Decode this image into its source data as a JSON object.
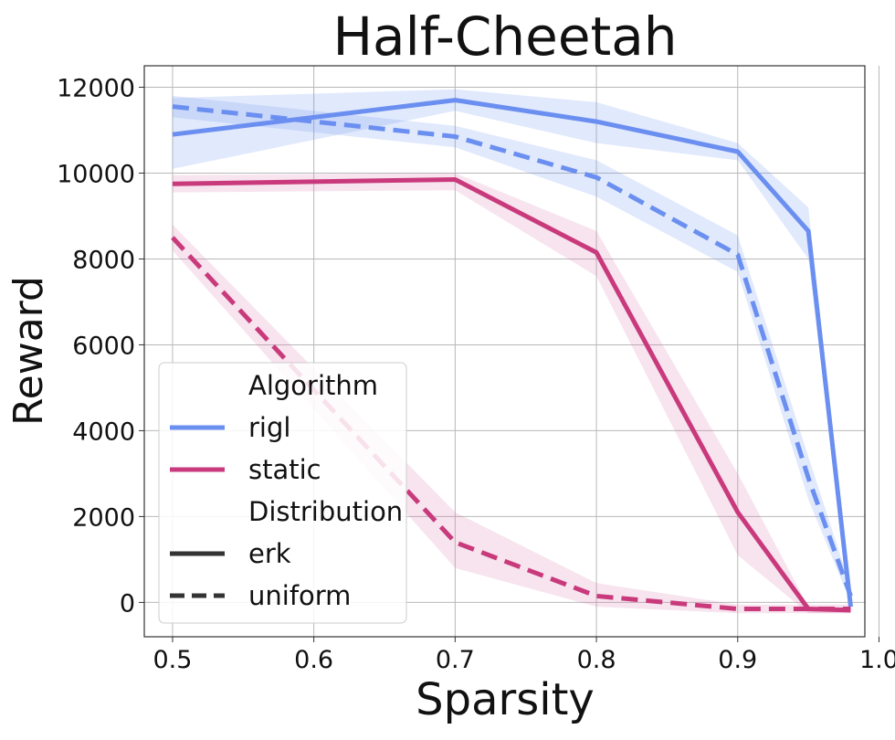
{
  "chart_data": {
    "type": "line",
    "title": "Half-Cheetah",
    "xlabel": "Sparsity",
    "ylabel": "Reward",
    "xlim": [
      0.48,
      0.99
    ],
    "ylim": [
      -800,
      12500
    ],
    "xticks": [
      0.5,
      0.6,
      0.7,
      0.8,
      0.9,
      1.0
    ],
    "xtick_labels": [
      "0.5",
      "0.6",
      "0.7",
      "0.8",
      "0.9",
      "1.0"
    ],
    "yticks": [
      0,
      2000,
      4000,
      6000,
      8000,
      10000,
      12000
    ],
    "ytick_labels": [
      "0",
      "2000",
      "4000",
      "6000",
      "8000",
      "10000",
      "12000"
    ],
    "grid": true,
    "legend": {
      "placement": "lower-left",
      "hue_title": "Algorithm",
      "style_title": "Distribution",
      "hue_entries": [
        {
          "label": "rigl",
          "color": "#6b8ff0"
        },
        {
          "label": "static",
          "color": "#c93a7c"
        }
      ],
      "style_entries": [
        {
          "label": "erk",
          "dash": "solid",
          "color": "#333333"
        },
        {
          "label": "uniform",
          "dash": "dashed",
          "color": "#333333"
        }
      ]
    },
    "series": [
      {
        "name": "rigl",
        "distribution": "erk",
        "color": "#6b8ff0",
        "band_color": "#6b8ff0",
        "dash": "solid",
        "x": [
          0.5,
          0.7,
          0.8,
          0.9,
          0.95,
          0.98
        ],
        "y": [
          10900,
          11700,
          11200,
          10500,
          8650,
          -100
        ],
        "lower": [
          10100,
          11450,
          10700,
          10300,
          8000,
          -200
        ],
        "upper": [
          11750,
          11950,
          11650,
          10700,
          9200,
          200
        ]
      },
      {
        "name": "rigl",
        "distribution": "uniform",
        "color": "#6b8ff0",
        "band_color": "#6b8ff0",
        "dash": "dashed",
        "x": [
          0.5,
          0.7,
          0.8,
          0.9,
          0.95,
          0.98
        ],
        "y": [
          11550,
          10850,
          9900,
          8100,
          2900,
          150
        ],
        "lower": [
          11300,
          10600,
          9450,
          7700,
          2400,
          0
        ],
        "upper": [
          11800,
          11100,
          10300,
          8550,
          3400,
          350
        ]
      },
      {
        "name": "static",
        "distribution": "erk",
        "color": "#c93a7c",
        "band_color": "#d978a8",
        "dash": "solid",
        "x": [
          0.5,
          0.7,
          0.8,
          0.9,
          0.95,
          0.98
        ],
        "y": [
          9750,
          9850,
          8150,
          2100,
          -150,
          -180
        ],
        "lower": [
          9550,
          9600,
          7600,
          1100,
          -250,
          -250
        ],
        "upper": [
          9950,
          10000,
          8650,
          3000,
          -100,
          -120
        ]
      },
      {
        "name": "static",
        "distribution": "uniform",
        "color": "#c93a7c",
        "band_color": "#d978a8",
        "dash": "dashed",
        "x": [
          0.5,
          0.7,
          0.8,
          0.9,
          0.95,
          0.98
        ],
        "y": [
          8500,
          1400,
          150,
          -150,
          -150,
          -150
        ],
        "lower": [
          8200,
          800,
          -100,
          -250,
          -250,
          -250
        ],
        "upper": [
          8800,
          2100,
          450,
          -50,
          -50,
          -50
        ]
      }
    ]
  }
}
